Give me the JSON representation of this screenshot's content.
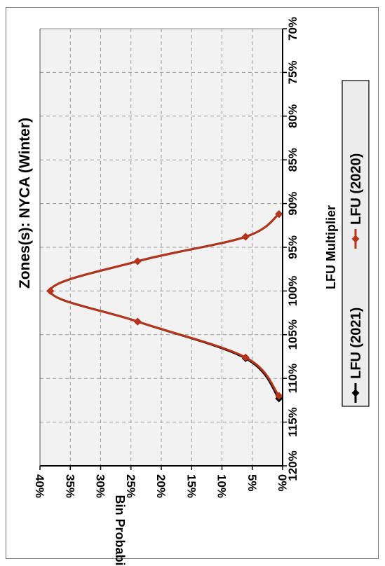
{
  "chart_data": {
    "type": "line",
    "title": "Zones(s): NYCA (Winter)",
    "xlabel": "LFU Multiplier",
    "ylabel": "Bin Probability",
    "xlim": [
      0.7,
      1.2
    ],
    "ylim": [
      0,
      0.4
    ],
    "x_ticks": [
      "70%",
      "75%",
      "80%",
      "85%",
      "90%",
      "95%",
      "100%",
      "105%",
      "110%",
      "115%",
      "120%"
    ],
    "y_ticks": [
      "0%",
      "5%",
      "10%",
      "15%",
      "20%",
      "25%",
      "30%",
      "35%",
      "40%"
    ],
    "grid": true,
    "legend_position": "right",
    "series": [
      {
        "name": "LFU (2021)",
        "color": "#000000",
        "marker": "diamond",
        "x": [
          0.912,
          0.938,
          0.966,
          1.0,
          1.035,
          1.077,
          1.123
        ],
        "y": [
          0.006,
          0.061,
          0.239,
          0.383,
          0.239,
          0.061,
          0.006
        ]
      },
      {
        "name": "LFU (2020)",
        "color": "#b5341a",
        "marker": "diamond",
        "x": [
          0.912,
          0.938,
          0.966,
          1.0,
          1.035,
          1.076,
          1.12
        ],
        "y": [
          0.006,
          0.061,
          0.239,
          0.383,
          0.239,
          0.061,
          0.006
        ]
      }
    ]
  }
}
